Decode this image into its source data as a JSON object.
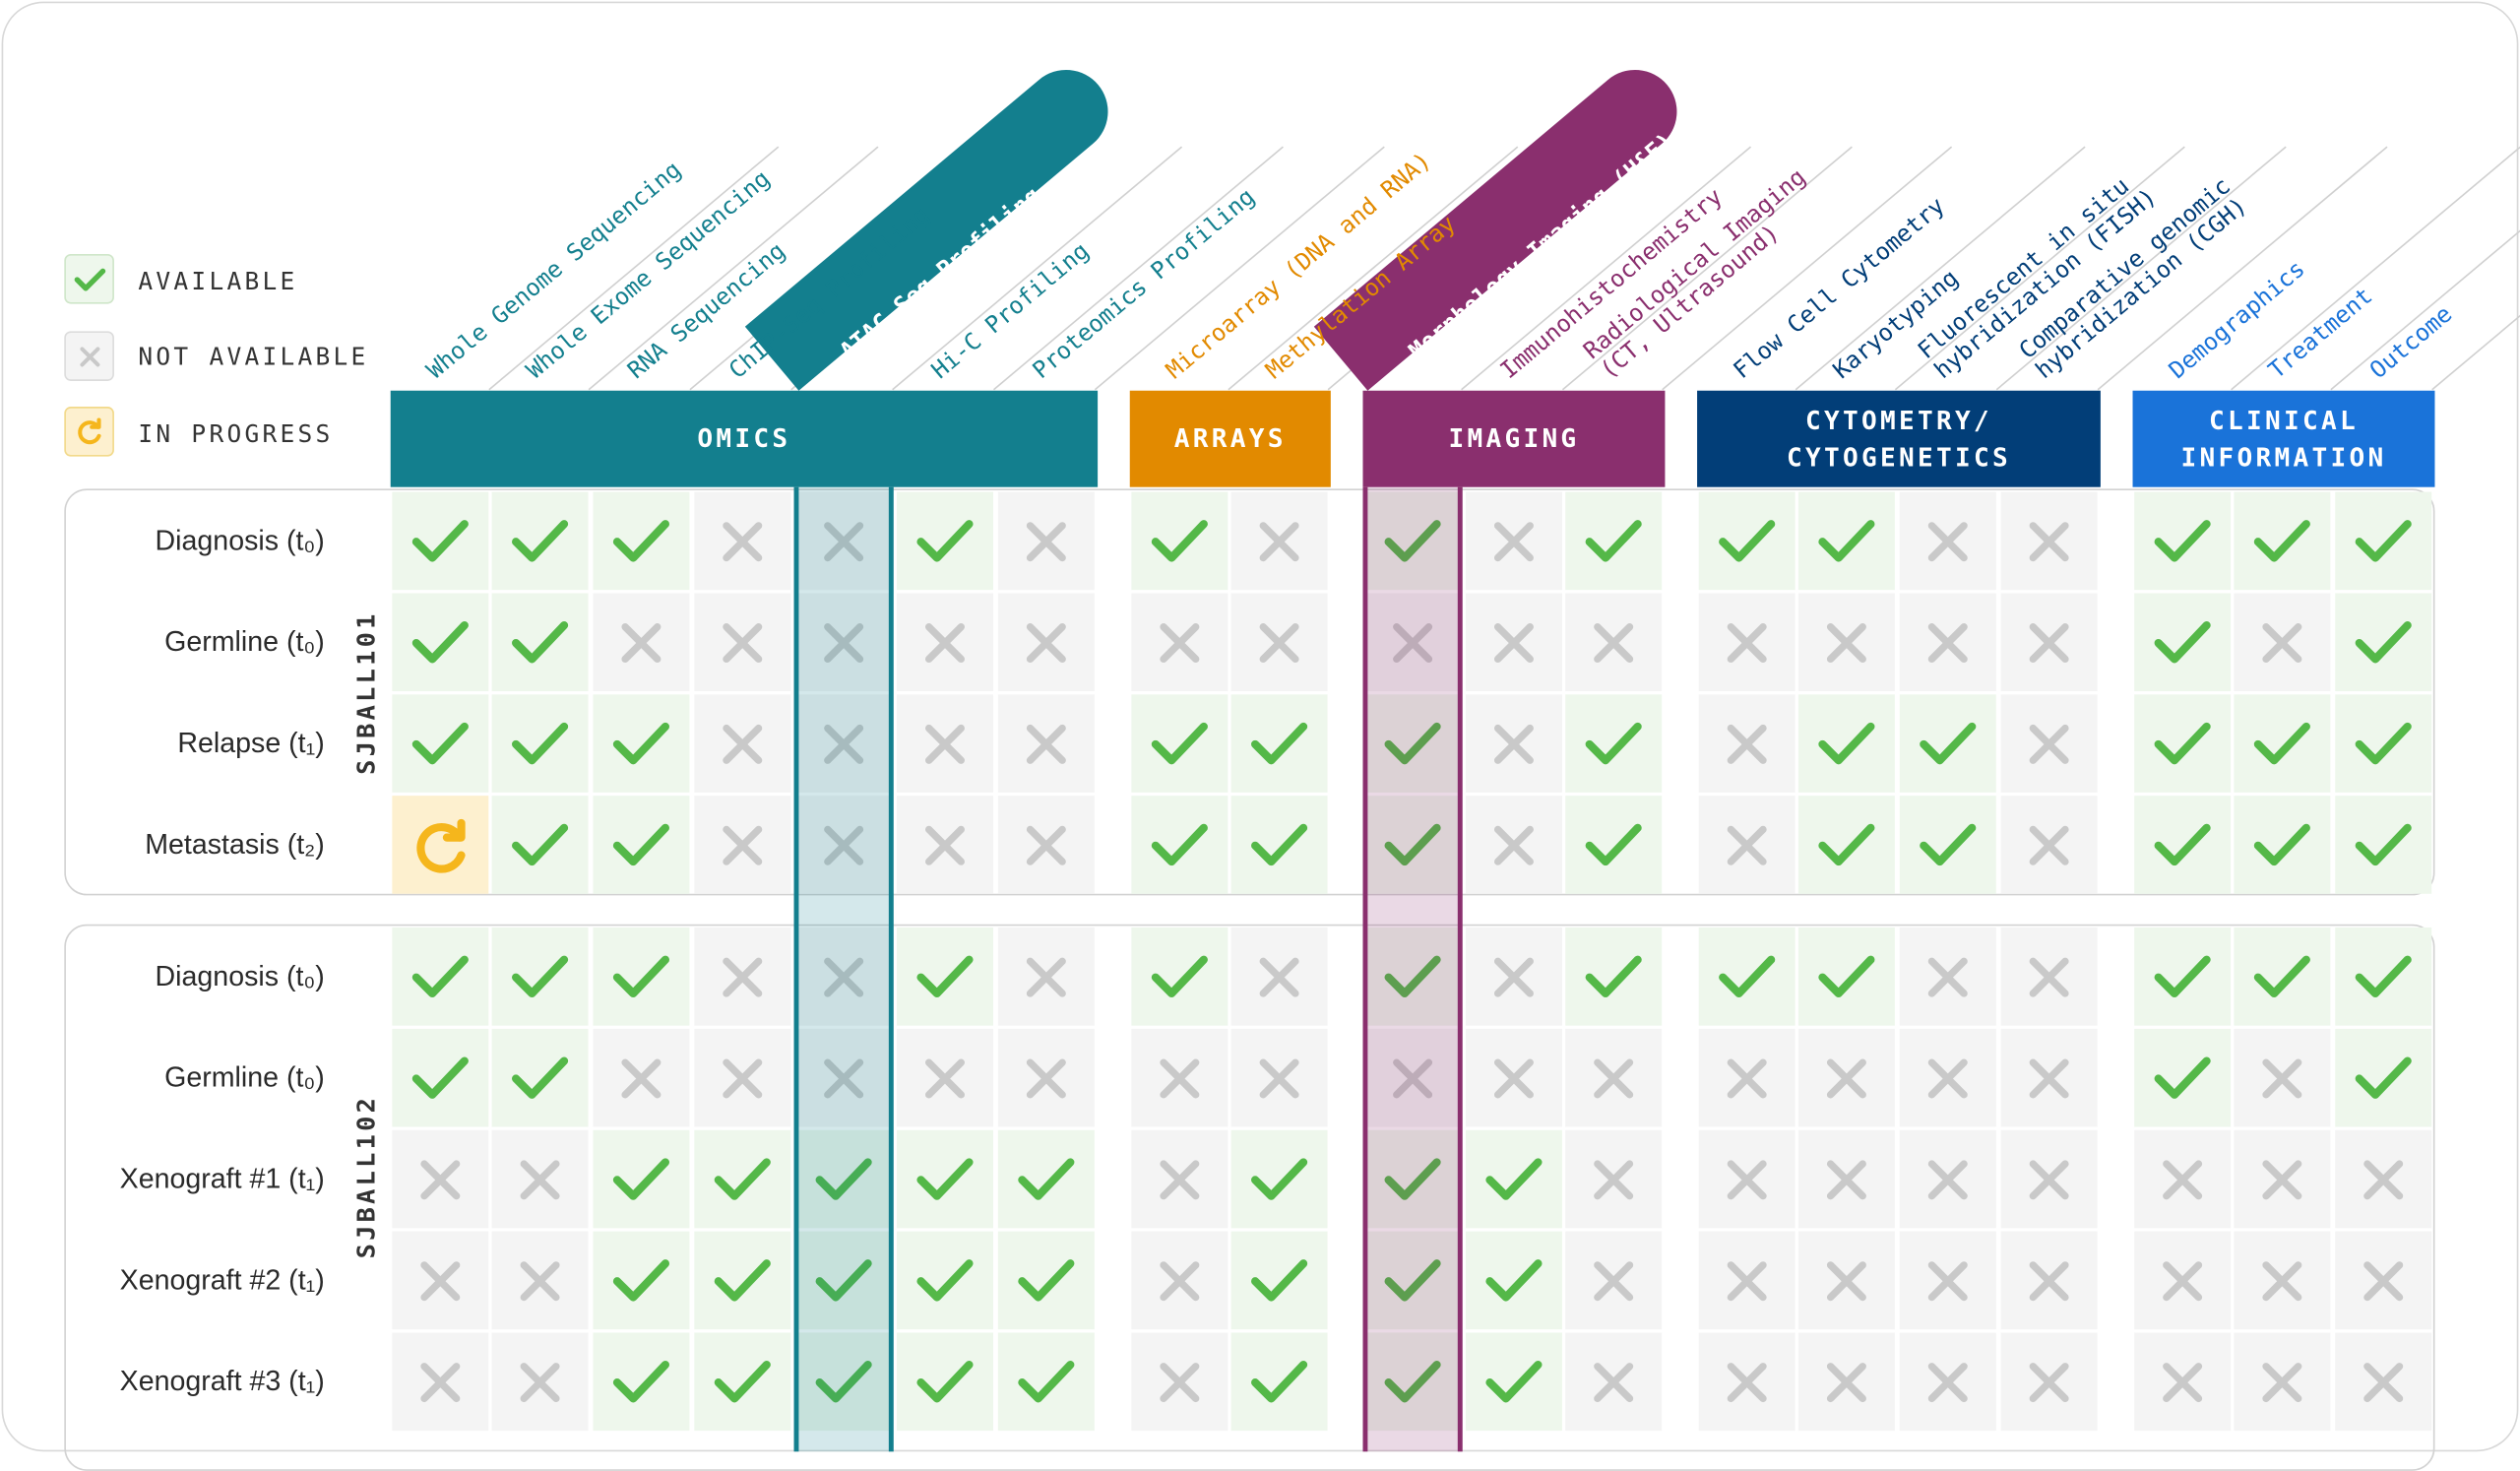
{
  "legend": [
    {
      "id": "available",
      "label": "AVAILABLE"
    },
    {
      "id": "unavailable",
      "label": "NOT AVAILABLE"
    },
    {
      "id": "progress",
      "label": "IN PROGRESS"
    }
  ],
  "colors": {
    "omics": "#137f8e",
    "arrays": "#e28a00",
    "imaging": "#8a2f6e",
    "cytometry": "#023e78",
    "clinical": "#1a73d9",
    "check": "#54b848",
    "cross": "#c9c9c9",
    "progress": "#f5b61c"
  },
  "groups": [
    {
      "id": "omics",
      "label": "OMICS",
      "columns": [
        {
          "label": "Whole Genome Sequencing"
        },
        {
          "label": "Whole Exome Sequencing"
        },
        {
          "label": "RNA Sequencing"
        },
        {
          "label": "ChIP-Seq Profiling"
        },
        {
          "label": "ATAC-Seq Profiling",
          "highlighted": true
        },
        {
          "label": "Hi-C Profiling"
        },
        {
          "label": "Proteomics Profiling"
        }
      ]
    },
    {
      "id": "arrays",
      "label": "ARRAYS",
      "columns": [
        {
          "label": "Microarray (DNA and RNA)"
        },
        {
          "label": "Methylation Array"
        }
      ]
    },
    {
      "id": "imaging",
      "label": "IMAGING",
      "columns": [
        {
          "label": "Morphology Imaging (H&E)",
          "highlighted": true
        },
        {
          "label": "Immunohistochemistry"
        },
        {
          "label": "Radiological Imaging\n(CT, Ultrasound)"
        }
      ]
    },
    {
      "id": "cytometry",
      "label": "CYTOMETRY/\nCYTOGENETICS",
      "columns": [
        {
          "label": "Flow Cell Cytometry"
        },
        {
          "label": "Karyotyping"
        },
        {
          "label": "Fluorescent in situ\nhybridization (FISH)"
        },
        {
          "label": "Comparative genomic\nhybridization (CGH)"
        }
      ]
    },
    {
      "id": "clinical",
      "label": "CLINICAL\nINFORMATION",
      "columns": [
        {
          "label": "Demographics"
        },
        {
          "label": "Treatment"
        },
        {
          "label": "Outcome"
        }
      ]
    }
  ],
  "samples": [
    {
      "id": "SJBALL101",
      "rows": [
        {
          "label": "Diagnosis (t₀)",
          "status": "AAAXXAXAXAXAAAXXAAA"
        },
        {
          "label": "Germline (t₀)",
          "status": "AAXXXXXXXXXXXXXXAXA"
        },
        {
          "label": "Relapse (t₁)",
          "status": "AAAXXXXAAAXAXAAXAAA"
        },
        {
          "label": "Metastasis (t₂)",
          "status": "PAAXXXXAAAXAXAAXAAA"
        }
      ]
    },
    {
      "id": "SJBALL102",
      "rows": [
        {
          "label": "Diagnosis (t₀)",
          "status": "AAAXXAXAXAXAAAXXAAA"
        },
        {
          "label": "Germline (t₀)",
          "status": "AAXXXXXXXXXXXXXXAXA"
        },
        {
          "label": "Xenograft #1 (t₁)",
          "status": "XXAAAAAXAAAXXXXXXXX"
        },
        {
          "label": "Xenograft #2 (t₁)",
          "status": "XXAAAAAXAAAXXXXXXXX"
        },
        {
          "label": "Xenograft #3 (t₁)",
          "status": "XXAAAAAXAAAXXXXXXXX"
        }
      ]
    }
  ]
}
